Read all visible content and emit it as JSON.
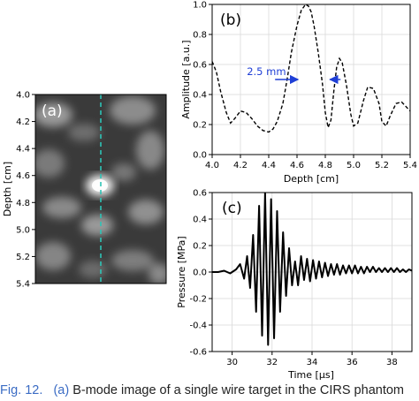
{
  "caption": {
    "label": "Fig. 12.",
    "panel_ref": "(a)",
    "text": "B-mode image of a single wire target in the CIRS phantom"
  },
  "colors": {
    "cursor_line": "#2ec4b6",
    "arrow": "#1f3fd6",
    "caption_label": "#3b6cc4"
  },
  "chart_data": [
    {
      "panel_label": "(a)",
      "type": "heatmap",
      "title": "",
      "xlabel": "",
      "ylabel": "Depth [cm]",
      "ylim": [
        4.0,
        5.4
      ],
      "y_ticks": [
        "4.0",
        "4.2",
        "4.4",
        "4.6",
        "4.8",
        "5.0",
        "5.2",
        "5.4"
      ],
      "annotation": "dashed vertical line through the wire target"
    },
    {
      "panel_label": "(b)",
      "type": "line",
      "title": "",
      "xlabel": "Depth [cm]",
      "ylabel": "Amplitude [a.u.]",
      "xlim": [
        4.0,
        5.4
      ],
      "ylim": [
        0.0,
        1.0
      ],
      "x_ticks": [
        "4.0",
        "4.2",
        "4.4",
        "4.6",
        "4.8",
        "5.0",
        "5.2",
        "5.4"
      ],
      "y_ticks": [
        "0.0",
        "0.2",
        "0.4",
        "0.6",
        "0.8",
        "1.0"
      ],
      "grid": true,
      "line_style": "dashed",
      "annotation": {
        "text": "2.5 mm",
        "left_x": 4.62,
        "right_x": 4.82,
        "y": 0.5
      },
      "x": [
        4.0,
        4.03,
        4.06,
        4.1,
        4.13,
        4.16,
        4.2,
        4.24,
        4.28,
        4.32,
        4.36,
        4.4,
        4.43,
        4.46,
        4.5,
        4.53,
        4.56,
        4.6,
        4.63,
        4.66,
        4.68,
        4.7,
        4.72,
        4.75,
        4.78,
        4.8,
        4.82,
        4.84,
        4.86,
        4.88,
        4.9,
        4.92,
        4.95,
        4.98,
        5.0,
        5.03,
        5.07,
        5.1,
        5.14,
        5.18,
        5.2,
        5.23,
        5.26,
        5.3,
        5.34,
        5.38,
        5.4
      ],
      "y": [
        0.62,
        0.55,
        0.42,
        0.28,
        0.21,
        0.24,
        0.29,
        0.28,
        0.24,
        0.19,
        0.16,
        0.15,
        0.17,
        0.22,
        0.34,
        0.5,
        0.68,
        0.86,
        0.96,
        1.0,
        0.99,
        0.95,
        0.86,
        0.68,
        0.47,
        0.28,
        0.18,
        0.23,
        0.42,
        0.58,
        0.64,
        0.61,
        0.46,
        0.27,
        0.19,
        0.21,
        0.36,
        0.45,
        0.44,
        0.34,
        0.22,
        0.19,
        0.26,
        0.34,
        0.35,
        0.31,
        0.29
      ]
    },
    {
      "panel_label": "(c)",
      "type": "line",
      "title": "",
      "xlabel": "Time [μs]",
      "ylabel": "Pressure [MPa]",
      "xlim": [
        29.0,
        39.0
      ],
      "ylim": [
        -0.6,
        0.6
      ],
      "x_ticks": [
        "30",
        "32",
        "34",
        "36",
        "38"
      ],
      "y_ticks": [
        "-0.6",
        "-0.4",
        "-0.2",
        "0.0",
        "0.2",
        "0.4",
        "0.6"
      ],
      "grid": true,
      "line_style": "solid",
      "x": [
        29.0,
        29.3,
        29.6,
        29.9,
        30.2,
        30.4,
        30.6,
        30.75,
        30.9,
        31.05,
        31.2,
        31.35,
        31.5,
        31.65,
        31.8,
        31.95,
        32.1,
        32.25,
        32.4,
        32.55,
        32.7,
        32.85,
        33.0,
        33.15,
        33.3,
        33.45,
        33.6,
        33.75,
        33.9,
        34.05,
        34.2,
        34.35,
        34.5,
        34.65,
        34.8,
        34.95,
        35.1,
        35.25,
        35.4,
        35.55,
        35.7,
        35.85,
        36.0,
        36.15,
        36.3,
        36.45,
        36.6,
        36.75,
        36.9,
        37.05,
        37.2,
        37.35,
        37.5,
        37.65,
        37.8,
        37.95,
        38.1,
        38.25,
        38.4,
        38.55,
        38.7,
        38.85,
        39.0
      ],
      "y": [
        0.0,
        0.0,
        0.01,
        -0.01,
        0.02,
        0.06,
        -0.05,
        0.12,
        -0.12,
        0.28,
        -0.3,
        0.5,
        -0.48,
        0.6,
        -0.55,
        0.55,
        -0.5,
        0.46,
        -0.3,
        0.3,
        -0.18,
        0.18,
        -0.1,
        0.08,
        -0.1,
        0.12,
        -0.06,
        0.1,
        -0.07,
        0.09,
        -0.05,
        0.08,
        -0.04,
        0.07,
        -0.03,
        0.06,
        -0.02,
        0.06,
        -0.02,
        0.05,
        -0.01,
        0.05,
        -0.01,
        0.05,
        -0.01,
        0.04,
        -0.01,
        0.04,
        0.0,
        0.04,
        0.0,
        0.03,
        0.0,
        0.03,
        0.0,
        0.03,
        0.0,
        0.03,
        0.0,
        0.02,
        0.0,
        0.02,
        0.01
      ]
    }
  ]
}
